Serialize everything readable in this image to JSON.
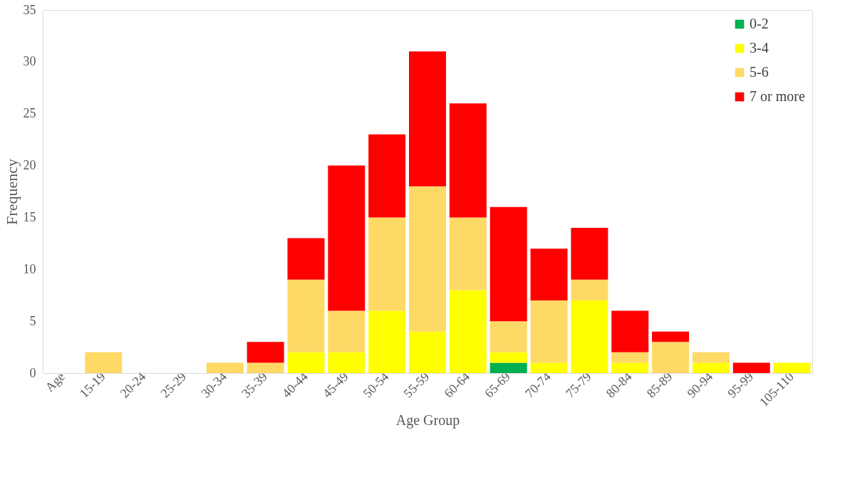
{
  "chart_data": {
    "type": "bar",
    "stacked": true,
    "xlabel": "Age Group",
    "ylabel": "Frequency",
    "categories": [
      "Age",
      "15-19",
      "20-24",
      "25-29",
      "30-34",
      "35-39",
      "40-44",
      "45-49",
      "50-54",
      "55-59",
      "60-64",
      "65-69",
      "70-74",
      "75-79",
      "80-84",
      "85-89",
      "90-94",
      "95-99",
      "105-110"
    ],
    "series": [
      {
        "name": "0-2",
        "color": "#00b050",
        "values": [
          0,
          0,
          0,
          0,
          0,
          0,
          0,
          0,
          0,
          0,
          0,
          1,
          0,
          0,
          0,
          0,
          0,
          0,
          0
        ]
      },
      {
        "name": "3-4",
        "color": "#ffff00",
        "values": [
          0,
          0,
          0,
          0,
          0,
          0,
          2,
          2,
          6,
          4,
          8,
          1,
          1,
          7,
          1,
          0,
          1,
          0,
          1
        ]
      },
      {
        "name": "5-6",
        "color": "#ffd966",
        "values": [
          0,
          2,
          0,
          0,
          1,
          1,
          7,
          4,
          9,
          14,
          7,
          3,
          6,
          2,
          1,
          3,
          1,
          0,
          0
        ]
      },
      {
        "name": "7 or more",
        "color": "#ff0000",
        "values": [
          0,
          0,
          0,
          0,
          0,
          2,
          4,
          14,
          8,
          13,
          11,
          11,
          5,
          5,
          4,
          1,
          0,
          1,
          0
        ]
      }
    ],
    "ylim": [
      0,
      35
    ],
    "yticks": [
      0,
      5,
      10,
      15,
      20,
      25,
      30,
      35
    ],
    "legend": "top right"
  }
}
